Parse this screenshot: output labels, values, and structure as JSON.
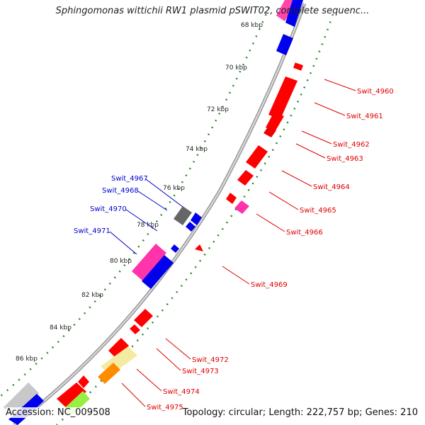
{
  "title": "Sphingomonas wittichii RW1 plasmid pSWIT02, complete sequenc...",
  "footer": {
    "accession_label": "Accession:",
    "accession": "NC_009508",
    "topology_text": "Topology: circular; Length: 222,757 bp; Genes: 210"
  },
  "colors": {
    "forward_label": "#e00000",
    "reverse_label": "#0000cc",
    "backbone": "#888888",
    "tick_dots": "#2a8a2a"
  },
  "kbp_labels": [
    "68 kbp",
    "70 kbp",
    "72 kbp",
    "74 kbp",
    "76 kbp",
    "78 kbp",
    "80 kbp",
    "82 kbp",
    "84 kbp",
    "86 kbp"
  ],
  "genes_right": [
    "Swit_4960",
    "Swit_4961",
    "Swit_4962",
    "Swit_4963",
    "Swit_4964",
    "Swit_4965",
    "Swit_4966",
    "Swit_4969",
    "Swit_4972",
    "Swit_4973",
    "Swit_4974",
    "Swit_4975"
  ],
  "genes_left": [
    "Swit_4967",
    "Swit_4968",
    "Swit_4970",
    "Swit_4971"
  ]
}
